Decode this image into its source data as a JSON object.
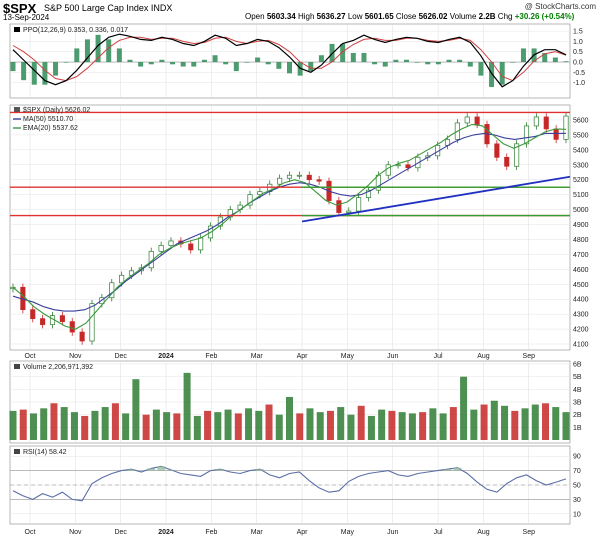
{
  "header": {
    "symbol": "$SPX",
    "name": "S&P 500 Large Cap Index  INDX",
    "date": "13-Sep-2024",
    "credit": "@ StockCharts.com",
    "open_label": "Open",
    "open": "5603.34",
    "high_label": "High",
    "high": "5636.27",
    "low_label": "Low",
    "low": "5601.65",
    "close_label": "Close",
    "close": "5626.02",
    "volume_label": "Volume",
    "volume": "2.2B",
    "chg_label": "Chg",
    "chg": "+30.26 (+0.54%)"
  },
  "colors": {
    "up": "#2e7d32",
    "down": "#c62828",
    "ma50": "#3b3f9e",
    "ema20": "#3a9a3a",
    "resistance": "#e03030",
    "support": "#30a030",
    "trendline": "#2030c0",
    "ppo_line": "#000000",
    "ppo_signal": "#d04040",
    "ppo_hist": "#2e8b57",
    "rsi": "#5a6ea8"
  },
  "chart_data": [
    {
      "type": "line",
      "panel": "ppo",
      "title": "PPO(12,26,9) 0.353, 0.336, 0.017",
      "ylim": [
        -1.6,
        1.7
      ],
      "yticks": [
        "1.5",
        "1.0",
        "0.5",
        "0.0",
        "-0.5",
        "-1.0"
      ],
      "series": [
        {
          "name": "PPO(12,26,9) 0.353",
          "values": [
            0.6,
            0.1,
            -0.4,
            -0.9,
            -1.1,
            -0.9,
            -0.4,
            0.2,
            0.8,
            1.2,
            1.35,
            1.25,
            1.1,
            1.05,
            1.2,
            1.1,
            0.9,
            0.8,
            1.0,
            1.3,
            1.15,
            0.8,
            0.9,
            1.1,
            1.0,
            0.7,
            0.25,
            -0.3,
            -0.5,
            -0.15,
            0.4,
            0.9,
            1.05,
            1.3,
            1.1,
            0.95,
            1.1,
            1.2,
            1.15,
            1.0,
            0.95,
            1.1,
            1.2,
            0.95,
            0.3,
            -0.55,
            -1.2,
            -0.9,
            -0.2,
            0.35,
            0.6,
            0.6,
            0.353
          ]
        },
        {
          "name": "signal 0.336",
          "values": [
            0.8,
            0.5,
            0.1,
            -0.4,
            -0.8,
            -0.9,
            -0.7,
            -0.3,
            0.2,
            0.7,
            1.05,
            1.2,
            1.2,
            1.1,
            1.15,
            1.15,
            1.0,
            0.9,
            0.95,
            1.15,
            1.2,
            1.0,
            0.9,
            1.0,
            1.05,
            0.85,
            0.5,
            0.0,
            -0.3,
            -0.3,
            0.0,
            0.5,
            0.85,
            1.1,
            1.15,
            1.05,
            1.05,
            1.15,
            1.15,
            1.05,
            1.0,
            1.05,
            1.15,
            1.05,
            0.6,
            0.0,
            -0.7,
            -0.9,
            -0.5,
            0.05,
            0.4,
            0.5,
            0.336
          ]
        }
      ]
    },
    {
      "type": "bar",
      "panel": "price",
      "legend_price": "$SPX (Daily) 5626.02",
      "legend_ma": "MA(50) 5510.70",
      "legend_ema": "EMA(20) 5537.62",
      "ylim": [
        4080,
        5680
      ],
      "yticks": [
        "5600",
        "5500",
        "5400",
        "5300",
        "5200",
        "5100",
        "5000",
        "4900",
        "4800",
        "4700",
        "4600",
        "4500",
        "4400",
        "4300",
        "4200",
        "4100"
      ],
      "xticks": [
        "Oct",
        "Nov",
        "Dec",
        "2024",
        "Feb",
        "Mar",
        "Apr",
        "May",
        "Jun",
        "Jul",
        "Aug",
        "Sep"
      ],
      "x_months": [
        "2023-10",
        "2023-11",
        "2023-12",
        "2024-01",
        "2024-02",
        "2024-03",
        "2024-04",
        "2024-05",
        "2024-06",
        "2024-07",
        "2024-08",
        "2024-09"
      ],
      "close_weekly": [
        4480,
        4330,
        4270,
        4230,
        4290,
        4250,
        4180,
        4120,
        4370,
        4410,
        4510,
        4560,
        4590,
        4610,
        4720,
        4760,
        4790,
        4770,
        4730,
        4810,
        4890,
        4950,
        5000,
        5030,
        5100,
        5120,
        5170,
        5210,
        5230,
        5230,
        5200,
        5190,
        5060,
        4980,
        4990,
        5080,
        5130,
        5230,
        5300,
        5300,
        5280,
        5350,
        5360,
        5430,
        5470,
        5580,
        5620,
        5570,
        5440,
        5350,
        5290,
        5440,
        5560,
        5620,
        5540,
        5470,
        5626
      ],
      "ma50_weekly": [
        4420,
        4400,
        4380,
        4350,
        4330,
        4320,
        4320,
        4330,
        4360,
        4410,
        4460,
        4520,
        4570,
        4620,
        4670,
        4720,
        4770,
        4800,
        4830,
        4860,
        4900,
        4950,
        4990,
        5040,
        5080,
        5120,
        5150,
        5170,
        5180,
        5170,
        5150,
        5120,
        5100,
        5090,
        5100,
        5130,
        5170,
        5210,
        5250,
        5290,
        5330,
        5370,
        5410,
        5450,
        5480,
        5500,
        5510,
        5500,
        5480,
        5470,
        5480,
        5490,
        5510,
        5510,
        5510.7
      ],
      "ema20_weekly": [
        4480,
        4420,
        4350,
        4300,
        4260,
        4220,
        4200,
        4240,
        4320,
        4400,
        4480,
        4540,
        4590,
        4640,
        4700,
        4740,
        4770,
        4790,
        4810,
        4850,
        4900,
        4960,
        5010,
        5060,
        5110,
        5140,
        5180,
        5200,
        5180,
        5120,
        5060,
        5030,
        5050,
        5100,
        5160,
        5230,
        5280,
        5310,
        5330,
        5370,
        5410,
        5450,
        5500,
        5540,
        5570,
        5560,
        5500,
        5440,
        5410,
        5440,
        5480,
        5520,
        5540,
        5537.62
      ],
      "levels": [
        {
          "name": "resistance-5650",
          "value": 5650,
          "color": "#e03030"
        },
        {
          "name": "level-5150",
          "value": 5150,
          "color": "#e03030"
        },
        {
          "name": "level-5150-green",
          "value": 5150,
          "color": "#30a030",
          "start_month": "2024-04"
        },
        {
          "name": "level-4960",
          "value": 4960,
          "color": "#e03030"
        },
        {
          "name": "level-4960-green",
          "value": 4960,
          "color": "#30a030",
          "start_month": "2024-04"
        }
      ],
      "trendline": {
        "start": [
          "2024-04",
          4920
        ],
        "end": [
          "2024-09",
          5220
        ]
      }
    },
    {
      "type": "bar",
      "panel": "volume",
      "title": "Volume 2,206,971,392",
      "ylim": [
        0,
        6000000000
      ],
      "yticks": [
        "6B",
        "5B",
        "4B",
        "3B",
        "2B",
        "1B"
      ],
      "values_weekly_B": [
        2.3,
        2.4,
        2.1,
        2.5,
        2.9,
        2.6,
        2.2,
        1.9,
        2.3,
        2.6,
        2.9,
        2.1,
        4.8,
        2.0,
        2.4,
        2.2,
        2.1,
        5.3,
        1.9,
        2.3,
        2.2,
        2.4,
        2.1,
        2.5,
        2.3,
        2.8,
        2.0,
        3.4,
        2.1,
        2.5,
        2.2,
        2.3,
        2.6,
        2.0,
        2.7,
        1.9,
        2.4,
        2.3,
        2.2,
        2.1,
        2.2,
        2.5,
        2.1,
        2.6,
        5.0,
        2.4,
        2.8,
        3.1,
        2.7,
        2.3,
        2.5,
        2.8,
        2.9,
        2.6,
        2.2
      ]
    },
    {
      "type": "line",
      "panel": "rsi",
      "title": "RSI(14) 58.42",
      "ylim": [
        0,
        100
      ],
      "yticks": [
        "90",
        "70",
        "50",
        "30",
        "10"
      ],
      "series": [
        {
          "name": "RSI(14) 58.42",
          "values": [
            42,
            35,
            30,
            38,
            33,
            40,
            30,
            28,
            52,
            60,
            66,
            70,
            72,
            68,
            73,
            76,
            71,
            66,
            64,
            62,
            70,
            72,
            68,
            66,
            70,
            72,
            64,
            60,
            66,
            68,
            56,
            46,
            40,
            42,
            55,
            62,
            66,
            68,
            70,
            64,
            62,
            66,
            68,
            70,
            72,
            74,
            66,
            54,
            44,
            40,
            52,
            60,
            64,
            56,
            50,
            54,
            58.42
          ]
        }
      ]
    }
  ]
}
